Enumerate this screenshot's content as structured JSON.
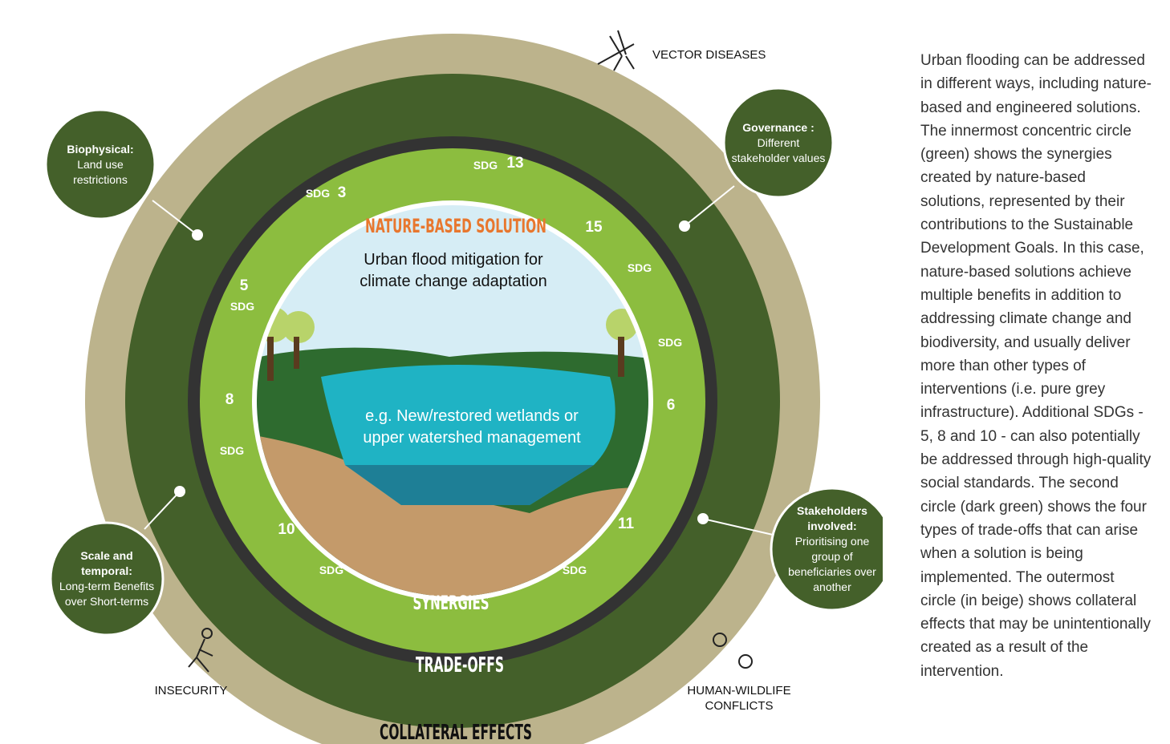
{
  "diagram": {
    "center": {
      "title": "NATURE-BASED SOLUTION",
      "headline": [
        "Urban flood mitigation for",
        "climate change adaptation"
      ],
      "subtext": [
        "e.g. New/restored wetlands or",
        "upper watershed management"
      ]
    },
    "rings": {
      "synergies": "SYNERGIES",
      "tradeoffs": "TRADE-OFFS",
      "collateral": "COLLATERAL EFFECTS"
    },
    "sdgs": [
      {
        "label": "SDG",
        "number": "13"
      },
      {
        "label": "SDG",
        "number": "3"
      },
      {
        "label": "SDG",
        "number": "15"
      },
      {
        "label": "SDG",
        "number": "6"
      },
      {
        "label": "SDG",
        "number": "5"
      },
      {
        "label": "SDG",
        "number": "8"
      },
      {
        "label": "SDG",
        "number": "10"
      },
      {
        "label": "SDG",
        "number": "11"
      }
    ],
    "tradeoffs": [
      {
        "title": "Biophysical:",
        "body": "Land use restrictions"
      },
      {
        "title": "Governance :",
        "body": "Different stakeholder values"
      },
      {
        "title": "Scale and temporal:",
        "body": "Long-term Benefits over Short-terms"
      },
      {
        "title": "Stakeholders involved:",
        "body": "Prioritising one group of beneficiaries over another"
      }
    ],
    "collateral": [
      "VECTOR DISEASES",
      [
        "INSECURITY"
      ],
      [
        "HUMAN-WILDLIFE",
        "CONFLICTS"
      ]
    ]
  },
  "description": "Urban flooding can be addressed in different ways, including nature-based and engineered solutions. The innermost concentric circle (green) shows the synergies created by nature-based solutions, represented by their contributions to the Sustainable Development Goals. In this case, nature-based solutions achieve multiple benefits in addition to addressing climate change and biodiversity, and usually deliver more than other types of interventions (i.e. pure grey infrastructure). Additional SDGs - 5, 8 and 10 - can also potentially be addressed through high-quality social standards. The second circle (dark green) shows the four types of trade-offs that can arise when a solution is being implemented. The outermost circle (in beige) shows collateral effects that may be unintentionally created as a result of the intervention."
}
